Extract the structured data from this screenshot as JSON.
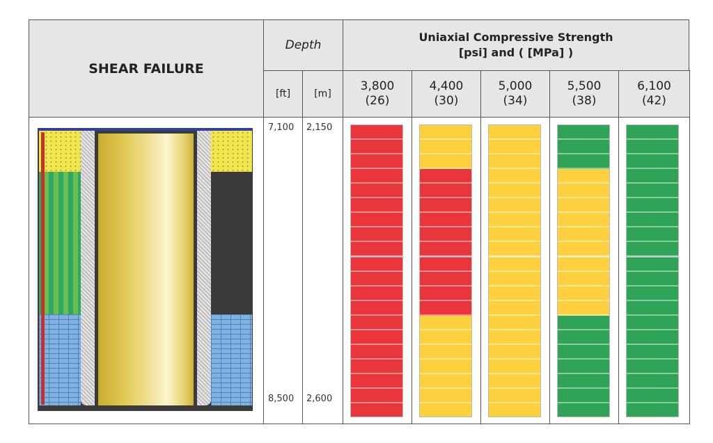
{
  "title": "SHEAR FAILURE",
  "depth_header": "Depth",
  "depth_units": [
    "[ft]",
    "[m]"
  ],
  "depth_top": {
    "ft": "7,100",
    "m": "2,150"
  },
  "depth_bottom": {
    "ft": "8,500",
    "m": "2,600"
  },
  "ucs_header_line1": "Uniaxial Compressive Strength",
  "ucs_header_line2": "[psi] and ( [MPa] )",
  "colors": {
    "R": "#e8363c",
    "Y": "#fdd03f",
    "G": "#2fa356"
  },
  "columns": [
    {
      "psi": "3,800",
      "mpa": "(26)",
      "segments": [
        "R",
        "R",
        "R",
        "R",
        "R",
        "R",
        "R",
        "R",
        "R",
        "R",
        "R",
        "R",
        "R",
        "R",
        "R",
        "R",
        "R",
        "R",
        "R",
        "R"
      ]
    },
    {
      "psi": "4,400",
      "mpa": "(30)",
      "segments": [
        "Y",
        "Y",
        "Y",
        "R",
        "R",
        "R",
        "R",
        "R",
        "R",
        "R",
        "R",
        "R",
        "R",
        "Y",
        "Y",
        "Y",
        "Y",
        "Y",
        "Y",
        "Y"
      ]
    },
    {
      "psi": "5,000",
      "mpa": "(34)",
      "segments": [
        "Y",
        "Y",
        "Y",
        "Y",
        "Y",
        "Y",
        "Y",
        "Y",
        "Y",
        "Y",
        "Y",
        "Y",
        "Y",
        "Y",
        "Y",
        "Y",
        "Y",
        "Y",
        "Y",
        "Y"
      ]
    },
    {
      "psi": "5,500",
      "mpa": "(38)",
      "segments": [
        "G",
        "G",
        "G",
        "Y",
        "Y",
        "Y",
        "Y",
        "Y",
        "Y",
        "Y",
        "Y",
        "Y",
        "Y",
        "G",
        "G",
        "G",
        "G",
        "G",
        "G",
        "G"
      ]
    },
    {
      "psi": "6,100",
      "mpa": "(42)",
      "segments": [
        "G",
        "G",
        "G",
        "G",
        "G",
        "G",
        "G",
        "G",
        "G",
        "G",
        "G",
        "G",
        "G",
        "G",
        "G",
        "G",
        "G",
        "G",
        "G",
        "G"
      ]
    }
  ]
}
